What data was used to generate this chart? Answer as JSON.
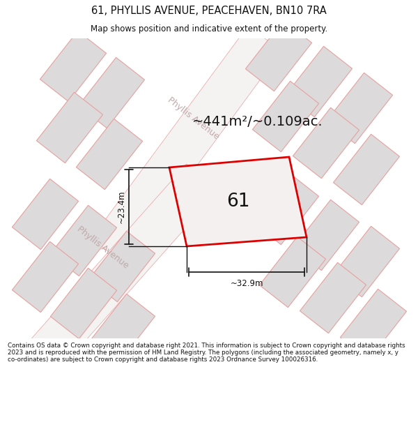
{
  "title": "61, PHYLLIS AVENUE, PEACEHAVEN, BN10 7RA",
  "subtitle": "Map shows position and indicative extent of the property.",
  "area_text": "~441m²/~0.109ac.",
  "plot_number": "61",
  "dim_width": "~32.9m",
  "dim_height": "~23.4m",
  "street_name_top": "Phyllis Avenue",
  "street_name_bottom": "Phyllis Avenue",
  "copyright_text": "Contains OS data © Crown copyright and database right 2021. This information is subject to Crown copyright and database rights 2023 and is reproduced with the permission of HM Land Registry. The polygons (including the associated geometry, namely x, y co-ordinates) are subject to Crown copyright and database rights 2023 Ordnance Survey 100026316.",
  "map_bg": "#eeecec",
  "block_fill": "#dcdada",
  "block_stroke": "#e8a0a0",
  "road_fill": "#f5f2f2",
  "highlight_stroke": "#dd0000",
  "highlight_fill": "#f5f0f0",
  "dim_line_color": "#111111",
  "text_color": "#111111",
  "street_label_color": "#c0aaaa",
  "footer_bg": "#ffffff",
  "road_stroke": "#e8a0a0"
}
